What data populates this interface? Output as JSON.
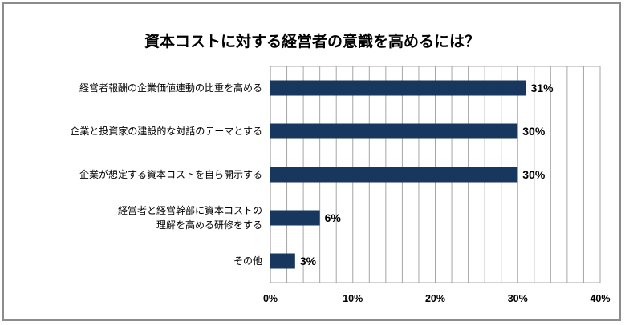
{
  "chart_data": {
    "type": "bar",
    "orientation": "horizontal",
    "title": "資本コストに対する経営者の意識を高めるには？",
    "categories": [
      [
        "経営者報酬の企業価値連動の比重を高める"
      ],
      [
        "企業と投資家の建設的な対話のテーマとする"
      ],
      [
        "企業が想定する資本コストを自ら開示する"
      ],
      [
        "経営者と経営幹部に資本コストの",
        "理解を高める研修をする"
      ],
      [
        "その他"
      ]
    ],
    "values": [
      31,
      30,
      30,
      6,
      3
    ],
    "data_labels": [
      "31%",
      "30%",
      "30%",
      "6%",
      "3%"
    ],
    "xlim": [
      0,
      40
    ],
    "x_ticks": [
      0,
      10,
      20,
      30,
      40
    ],
    "x_tick_labels": [
      "0%",
      "10%",
      "20%",
      "30%",
      "40%"
    ],
    "grid": true,
    "bar_color": "#17375e",
    "xlabel": "",
    "ylabel": ""
  }
}
